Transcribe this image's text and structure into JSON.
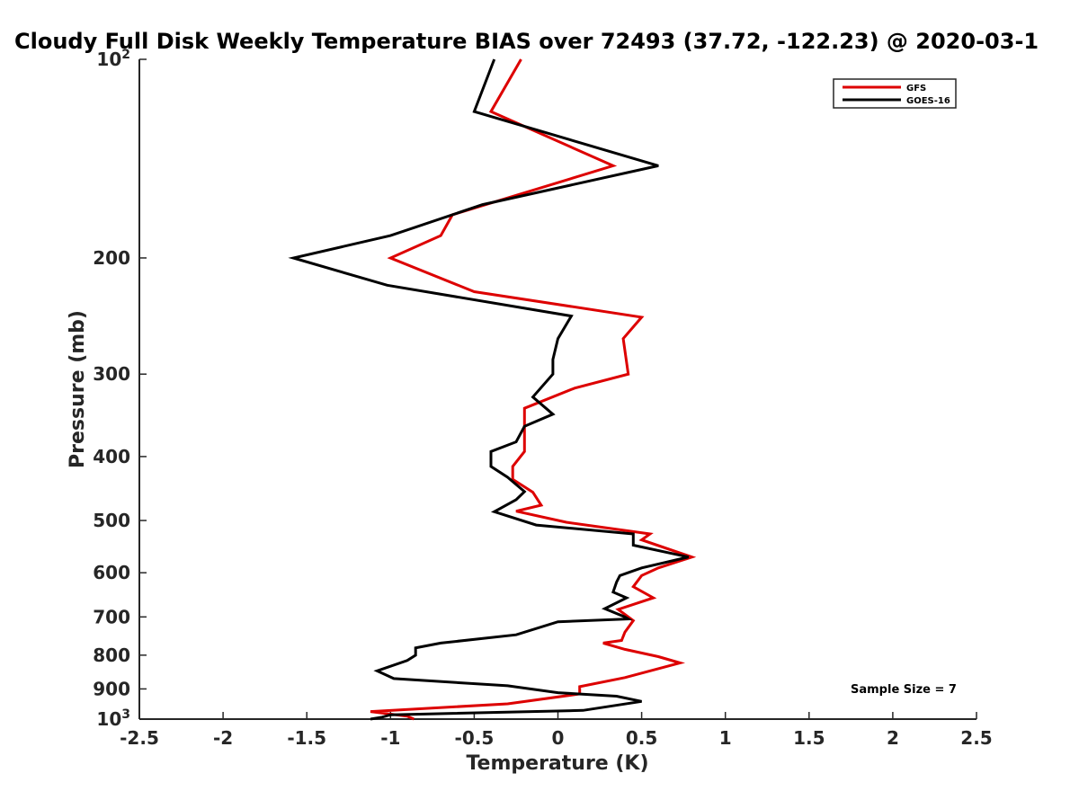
{
  "chart_data": {
    "type": "line",
    "title": "Cloudy Full Disk Weekly Temperature BIAS over 72493 (37.72, -122.23) @ 2020-03-1",
    "xlabel": "Temperature (K)",
    "ylabel": "Pressure (mb)",
    "xlim": [
      -2.5,
      2.5
    ],
    "ylim": [
      1000,
      100
    ],
    "y_scale": "log",
    "y_reversed": true,
    "grid": false,
    "legend_position": "top-right",
    "x_ticks": [
      "-2.5",
      "-2",
      "-1.5",
      "-1",
      "-0.5",
      "0",
      "0.5",
      "1",
      "1.5",
      "2",
      "2.5"
    ],
    "y_ticks": [
      {
        "value": 100,
        "label": "10",
        "sup": "2"
      },
      {
        "value": 200,
        "label": "200",
        "sup": ""
      },
      {
        "value": 300,
        "label": "300",
        "sup": ""
      },
      {
        "value": 400,
        "label": "400",
        "sup": ""
      },
      {
        "value": 500,
        "label": "500",
        "sup": ""
      },
      {
        "value": 600,
        "label": "600",
        "sup": ""
      },
      {
        "value": 700,
        "label": "700",
        "sup": ""
      },
      {
        "value": 800,
        "label": "800",
        "sup": ""
      },
      {
        "value": 900,
        "label": "900",
        "sup": ""
      },
      {
        "value": 1000,
        "label": "10",
        "sup": "3"
      }
    ],
    "annotation": "Sample Size = 7",
    "series": [
      {
        "name": "GFS",
        "color": "#dd0000",
        "points": [
          [
            -0.22,
            100
          ],
          [
            -0.4,
            120
          ],
          [
            0.33,
            145
          ],
          [
            -0.63,
            172
          ],
          [
            -0.7,
            185
          ],
          [
            -1.0,
            200
          ],
          [
            -0.5,
            225
          ],
          [
            0.5,
            246
          ],
          [
            0.39,
            265
          ],
          [
            0.42,
            300
          ],
          [
            0.1,
            315
          ],
          [
            -0.2,
            338
          ],
          [
            -0.2,
            370
          ],
          [
            -0.2,
            393
          ],
          [
            -0.27,
            414
          ],
          [
            -0.27,
            433
          ],
          [
            -0.15,
            453
          ],
          [
            -0.1,
            474
          ],
          [
            -0.25,
            484
          ],
          [
            0.05,
            503
          ],
          [
            0.55,
            524
          ],
          [
            0.5,
            535
          ],
          [
            0.8,
            568
          ],
          [
            0.6,
            590
          ],
          [
            0.5,
            606
          ],
          [
            0.45,
            630
          ],
          [
            0.57,
            655
          ],
          [
            0.36,
            682
          ],
          [
            0.45,
            709
          ],
          [
            0.4,
            738
          ],
          [
            0.38,
            760
          ],
          [
            0.27,
            767
          ],
          [
            0.4,
            784
          ],
          [
            0.6,
            804
          ],
          [
            0.73,
            822
          ],
          [
            0.4,
            865
          ],
          [
            0.13,
            893
          ],
          [
            0.13,
            916
          ],
          [
            -0.3,
            948
          ],
          [
            -1.12,
            974
          ],
          [
            -0.9,
            990
          ],
          [
            -0.86,
            1000
          ]
        ]
      },
      {
        "name": "GOES-16",
        "color": "#000000",
        "points": [
          [
            -0.38,
            100
          ],
          [
            -0.5,
            120
          ],
          [
            0.6,
            145
          ],
          [
            -0.45,
            166
          ],
          [
            -1.0,
            185
          ],
          [
            -1.58,
            200
          ],
          [
            -1.02,
            220
          ],
          [
            0.08,
            245
          ],
          [
            0.0,
            265
          ],
          [
            -0.03,
            285
          ],
          [
            -0.03,
            300
          ],
          [
            -0.15,
            325
          ],
          [
            -0.03,
            345
          ],
          [
            -0.2,
            360
          ],
          [
            -0.25,
            380
          ],
          [
            -0.4,
            393
          ],
          [
            -0.4,
            414
          ],
          [
            -0.3,
            430
          ],
          [
            -0.2,
            452
          ],
          [
            -0.25,
            465
          ],
          [
            -0.38,
            485
          ],
          [
            -0.13,
            508
          ],
          [
            0.45,
            524
          ],
          [
            0.45,
            545
          ],
          [
            0.78,
            568
          ],
          [
            0.5,
            590
          ],
          [
            0.37,
            606
          ],
          [
            0.35,
            620
          ],
          [
            0.33,
            642
          ],
          [
            0.41,
            655
          ],
          [
            0.28,
            680
          ],
          [
            0.4,
            700
          ],
          [
            0.42,
            705
          ],
          [
            0.0,
            712
          ],
          [
            -0.25,
            745
          ],
          [
            -0.7,
            767
          ],
          [
            -0.85,
            780
          ],
          [
            -0.85,
            800
          ],
          [
            -0.9,
            815
          ],
          [
            -1.08,
            845
          ],
          [
            -0.98,
            868
          ],
          [
            -0.3,
            890
          ],
          [
            0.0,
            912
          ],
          [
            0.35,
            923
          ],
          [
            0.5,
            940
          ],
          [
            0.15,
            970
          ],
          [
            -1.0,
            985
          ],
          [
            -1.05,
            993
          ],
          [
            -1.12,
            1000
          ]
        ]
      }
    ]
  }
}
